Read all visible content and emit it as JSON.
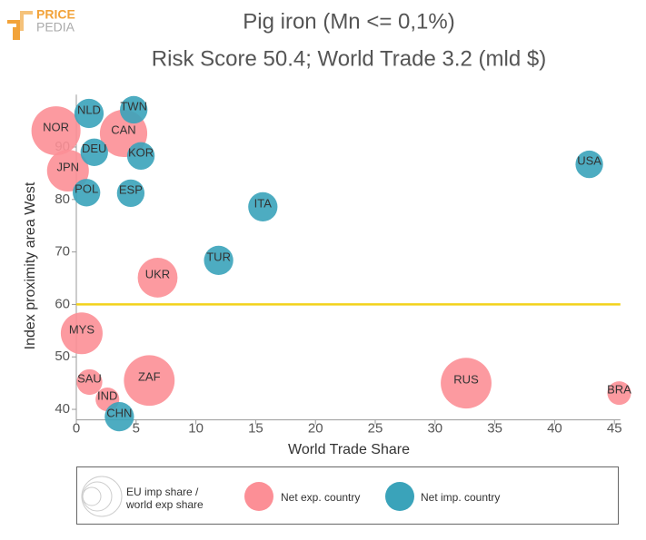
{
  "logo": [
    "PRICE",
    "PEDIA"
  ],
  "chart_data": {
    "type": "bubble",
    "title": "Pig iron (Mn <= 0,1%)",
    "subtitle": "Risk Score 50.4; World Trade 3.2 (mld $)",
    "x_label": "World Trade Share",
    "y_label": "Index proximity area West",
    "size_label": "EU imp share / world exp share",
    "xlim": [
      0,
      45.5
    ],
    "ylim": [
      38,
      100
    ],
    "xticks": [
      0,
      5,
      10,
      15,
      20,
      25,
      30,
      35,
      40,
      45
    ],
    "yticks": [
      40,
      50,
      60,
      70,
      80,
      90
    ],
    "grid": false,
    "reference_line": {
      "value": 60,
      "color": "#f2d21b"
    },
    "series": [
      {
        "name": "Net exp. country",
        "color": "#fc8f96",
        "labels": [
          "NOR",
          "CAN",
          "JPN",
          "UKR",
          "MYS",
          "SAU",
          "ZAF",
          "IND",
          "RUS",
          "BRA"
        ],
        "x": [
          -1.7,
          3.95,
          -0.7,
          6.8,
          0.45,
          1.1,
          6.1,
          2.6,
          32.6,
          45.4
        ],
        "values": [
          93.1,
          92.6,
          85.5,
          65.1,
          54.5,
          45.2,
          45.5,
          41.9,
          45.0,
          43.1
        ],
        "sizes": [
          7.3,
          6.8,
          5.3,
          4.8,
          5.3,
          2.0,
          7.8,
          1.7,
          7.8,
          1.7
        ]
      },
      {
        "name": "Net imp. country",
        "color": "#3aa3ba",
        "labels": [
          "NLD",
          "TWN",
          "DEU",
          "KOR",
          "POL",
          "ESP",
          "USA",
          "ITA",
          "TUR",
          "CHN"
        ],
        "x": [
          1.06,
          4.8,
          1.5,
          5.4,
          0.85,
          4.55,
          42.9,
          15.6,
          11.9,
          3.6
        ],
        "values": [
          96.4,
          97.1,
          89.0,
          88.3,
          81.3,
          81.2,
          86.7,
          78.6,
          68.4,
          38.6
        ],
        "sizes": [
          2.6,
          2.3,
          2.3,
          2.3,
          2.3,
          2.3,
          2.3,
          2.6,
          2.6,
          2.6
        ]
      }
    ]
  }
}
